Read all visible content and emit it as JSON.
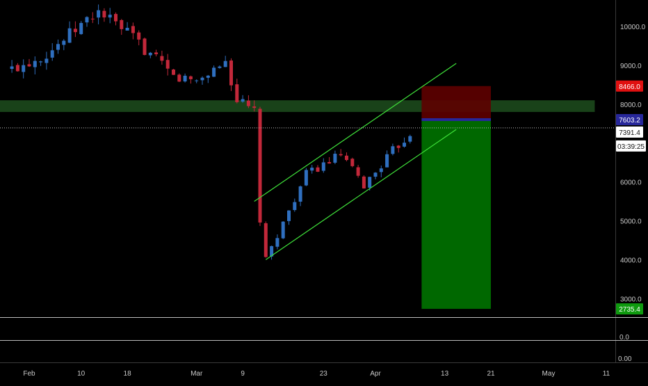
{
  "chart_data": {
    "type": "candlestick",
    "title": "",
    "xlabel": "",
    "ylabel": "",
    "x_ticks": [
      "Feb",
      "10",
      "18",
      "Mar",
      "9",
      "23",
      "Apr",
      "13",
      "21",
      "May",
      "11"
    ],
    "y_ticks": [
      "10000.0",
      "9000.0",
      "8000.0",
      "6000.0",
      "5000.0",
      "4000.0",
      "3000.0"
    ],
    "ylim": [
      2600,
      10700
    ],
    "price_badges": {
      "stop": "8466.0",
      "entry": "7603.2",
      "last": "7391.4",
      "countdown": "03:39:25",
      "target": "2735.4"
    },
    "sub_panes": [
      {
        "ticks": [
          "0.0"
        ]
      },
      {
        "ticks": [
          "0.00"
        ]
      }
    ],
    "key_price_path": [
      {
        "date": "2020-01-29",
        "price": 8900
      },
      {
        "date": "2020-02-04",
        "price": 9300
      },
      {
        "date": "2020-02-13",
        "price": 10400
      },
      {
        "date": "2020-02-19",
        "price": 9700
      },
      {
        "date": "2020-02-26",
        "price": 8700
      },
      {
        "date": "2020-03-01",
        "price": 8600
      },
      {
        "date": "2020-03-06",
        "price": 9100
      },
      {
        "date": "2020-03-08",
        "price": 8100
      },
      {
        "date": "2020-03-11",
        "price": 7800
      },
      {
        "date": "2020-03-12",
        "price": 5000
      },
      {
        "date": "2020-03-13",
        "price": 4000
      },
      {
        "date": "2020-03-20",
        "price": 6200
      },
      {
        "date": "2020-03-26",
        "price": 6700
      },
      {
        "date": "2020-03-30",
        "price": 5900
      },
      {
        "date": "2020-04-04",
        "price": 6800
      },
      {
        "date": "2020-04-08",
        "price": 7400
      }
    ],
    "annotations": {
      "channel_upper": [
        {
          "date": "2020-03-11",
          "price": 5500
        },
        {
          "date": "2020-04-15",
          "price": 9050
        }
      ],
      "channel_lower": [
        {
          "date": "2020-03-13",
          "price": 4000
        },
        {
          "date": "2020-04-15",
          "price": 7350
        }
      ],
      "resistance_zone": {
        "from_date": "2020-01-01",
        "to_date": "2020-05-09",
        "low": 7800,
        "high": 8100
      },
      "short_position": {
        "from_date": "2020-04-09",
        "to_date": "2020-04-21",
        "entry": 7603.2,
        "stop": 8466.0,
        "target": 2735.4
      },
      "last_price_line": 7391.4
    },
    "grid": false,
    "colors": {
      "background": "#000000",
      "up_candle": "#2f6fbf",
      "down_candle": "#c2283a",
      "channel": "#3fe23a",
      "zone": "#1d4d1d",
      "stop_box": "#5e0000",
      "target_box": "#007a00",
      "stop_badge": "#e01010",
      "entry_badge": "#27279a",
      "target_badge": "#0f9a0f"
    }
  }
}
